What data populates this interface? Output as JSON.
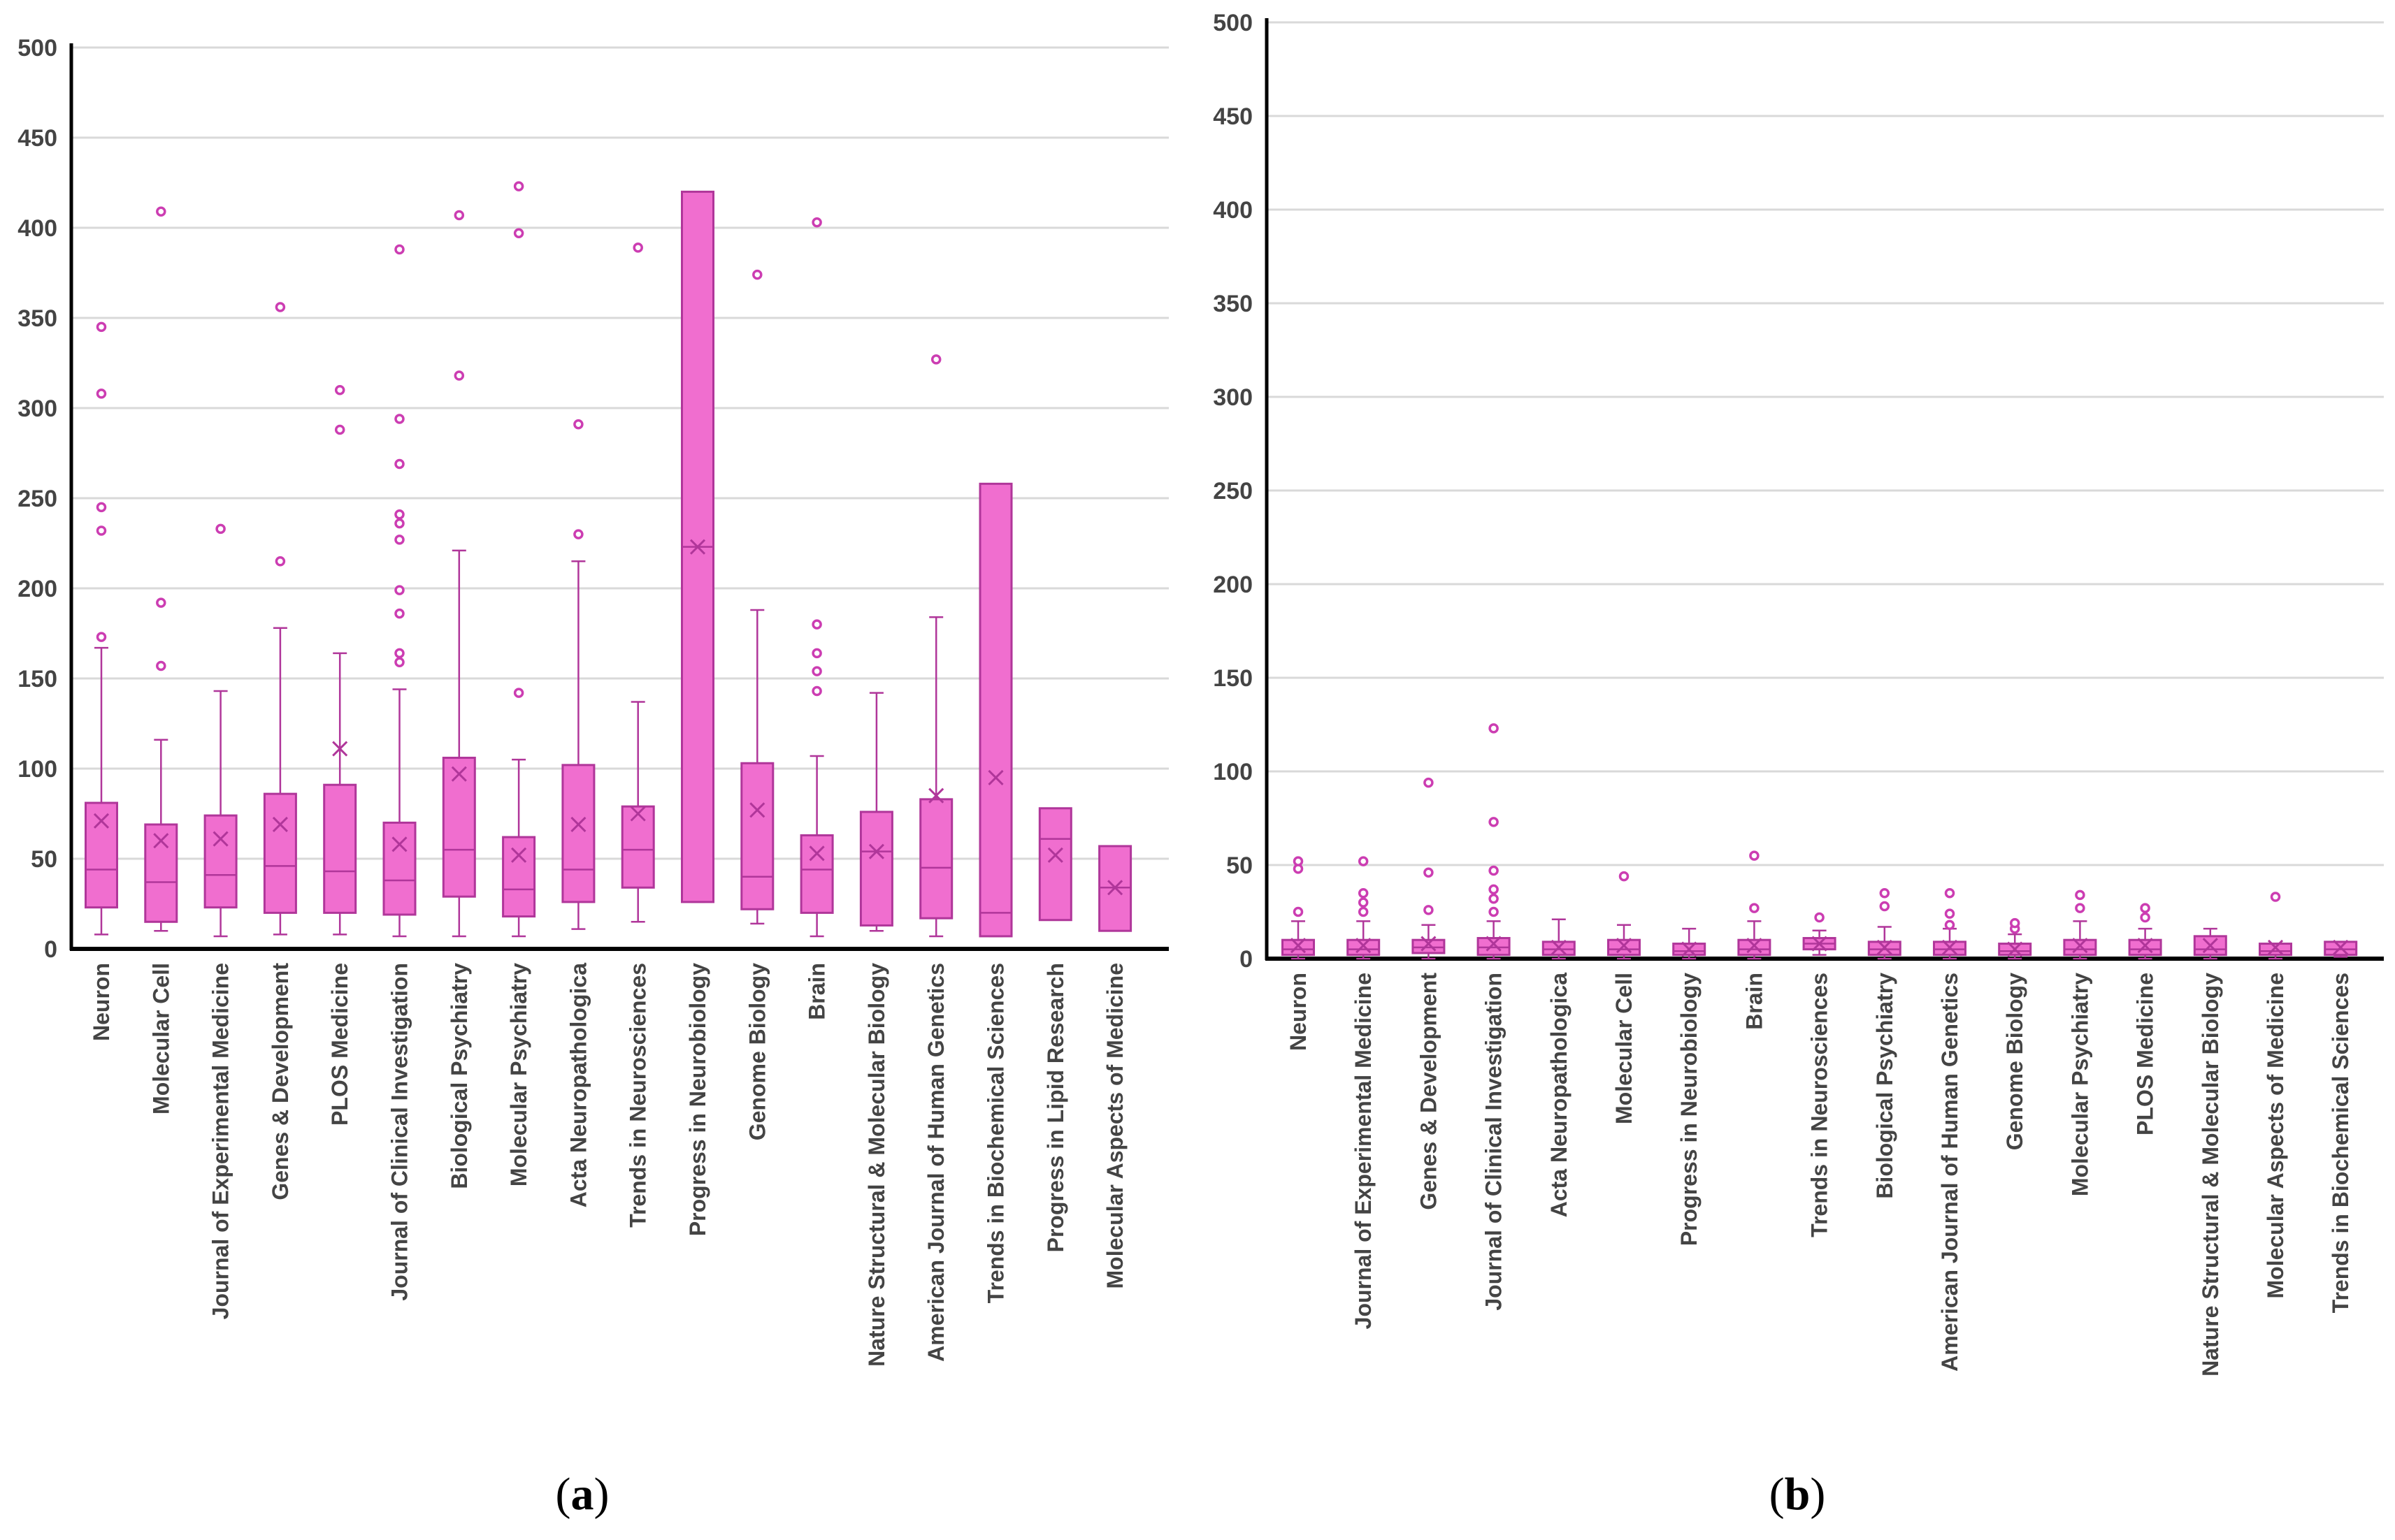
{
  "colors": {
    "box_fill": "#F06ECF",
    "box_stroke": "#B0369A",
    "outlier": "#CC3DB2",
    "grid": "#D9D9D9",
    "axis": "#000000"
  },
  "chart_data": [
    {
      "type": "box",
      "panel_label": "a",
      "ylim": [
        0,
        500
      ],
      "yticks": [
        "0",
        "50",
        "100",
        "150",
        "200",
        "250",
        "300",
        "350",
        "400",
        "450",
        "500"
      ],
      "grid": true,
      "categories": [
        {
          "name": "Neuron",
          "min": 8,
          "q1": 23,
          "median": 44,
          "q3": 81,
          "max": 167,
          "mean": 71,
          "outliers": [
            173,
            232,
            245,
            308,
            345
          ]
        },
        {
          "name": "Molecular Cell",
          "min": 10,
          "q1": 15,
          "median": 37,
          "q3": 69,
          "max": 116,
          "mean": 60,
          "outliers": [
            157,
            192,
            409
          ]
        },
        {
          "name": "Journal of Experimental Medicine",
          "min": 7,
          "q1": 23,
          "median": 41,
          "q3": 74,
          "max": 143,
          "mean": 61,
          "outliers": [
            233
          ]
        },
        {
          "name": "Genes & Development",
          "min": 8,
          "q1": 20,
          "median": 46,
          "q3": 86,
          "max": 178,
          "mean": 69,
          "outliers": [
            215,
            356
          ]
        },
        {
          "name": "PLOS Medicine",
          "min": 8,
          "q1": 20,
          "median": 43,
          "q3": 91,
          "max": 164,
          "mean": 111,
          "outliers": [
            288,
            310
          ]
        },
        {
          "name": "Journal of Clinical Investigation",
          "min": 7,
          "q1": 19,
          "median": 38,
          "q3": 70,
          "max": 144,
          "mean": 58,
          "outliers": [
            159,
            164,
            186,
            199,
            227,
            236,
            241,
            269,
            294,
            388
          ]
        },
        {
          "name": "Biological Psychiatry",
          "min": 7,
          "q1": 29,
          "median": 55,
          "q3": 106,
          "max": 221,
          "mean": 97,
          "outliers": [
            318,
            407
          ]
        },
        {
          "name": "Molecular Psychiatry",
          "min": 7,
          "q1": 18,
          "median": 33,
          "q3": 62,
          "max": 105,
          "mean": 52,
          "outliers": [
            142,
            397,
            423
          ]
        },
        {
          "name": "Acta Neuropathologica",
          "min": 11,
          "q1": 26,
          "median": 44,
          "q3": 102,
          "max": 215,
          "mean": 69,
          "outliers": [
            230,
            291
          ]
        },
        {
          "name": "Trends in Neurosciences",
          "min": 15,
          "q1": 34,
          "median": 55,
          "q3": 79,
          "max": 137,
          "mean": 75,
          "outliers": [
            389
          ]
        },
        {
          "name": "Progress in Neurobiology",
          "min": 26,
          "q1": 26,
          "median": 223,
          "q3": 420,
          "max": 420,
          "mean": 223,
          "outliers": []
        },
        {
          "name": "Genome Biology",
          "min": 14,
          "q1": 22,
          "median": 40,
          "q3": 103,
          "max": 188,
          "mean": 77,
          "outliers": [
            374
          ]
        },
        {
          "name": "Brain",
          "min": 7,
          "q1": 20,
          "median": 44,
          "q3": 63,
          "max": 107,
          "mean": 53,
          "outliers": [
            143,
            154,
            164,
            180,
            403
          ]
        },
        {
          "name": "Nature Structural & Molecular Biology",
          "min": 10,
          "q1": 13,
          "median": 54,
          "q3": 76,
          "max": 142,
          "mean": 54,
          "outliers": []
        },
        {
          "name": "American Journal of Human Genetics",
          "min": 7,
          "q1": 17,
          "median": 45,
          "q3": 83,
          "max": 184,
          "mean": 85,
          "outliers": [
            327
          ]
        },
        {
          "name": "Trends in Biochemical Sciences",
          "min": 7,
          "q1": 7,
          "median": 20,
          "q3": 258,
          "max": 258,
          "mean": 95,
          "outliers": []
        },
        {
          "name": "Progress in Lipid Research",
          "min": 16,
          "q1": 16,
          "median": 61,
          "q3": 78,
          "max": 78,
          "mean": 52,
          "outliers": []
        },
        {
          "name": "Molecular Aspects of Medicine",
          "min": 10,
          "q1": 10,
          "median": 34,
          "q3": 57,
          "max": 57,
          "mean": 34,
          "outliers": []
        }
      ]
    },
    {
      "type": "box",
      "panel_label": "b",
      "ylim": [
        0,
        500
      ],
      "yticks": [
        "0",
        "50",
        "100",
        "150",
        "200",
        "250",
        "300",
        "350",
        "400",
        "450",
        "500"
      ],
      "grid": true,
      "categories": [
        {
          "name": "Neuron",
          "min": 0,
          "q1": 2,
          "median": 5,
          "q3": 10,
          "max": 20,
          "mean": 7,
          "outliers": [
            25,
            48,
            52
          ]
        },
        {
          "name": "Journal of Experimental Medicine",
          "min": 0,
          "q1": 2,
          "median": 5,
          "q3": 10,
          "max": 20,
          "mean": 7,
          "outliers": [
            25,
            30,
            35,
            52
          ]
        },
        {
          "name": "Genes & Development",
          "min": 0,
          "q1": 3,
          "median": 6,
          "q3": 10,
          "max": 18,
          "mean": 8,
          "outliers": [
            26,
            46,
            94
          ]
        },
        {
          "name": "Journal of Clinical Investigation",
          "min": 0,
          "q1": 2,
          "median": 6,
          "q3": 11,
          "max": 20,
          "mean": 8,
          "outliers": [
            25,
            32,
            37,
            47,
            73,
            123
          ]
        },
        {
          "name": "Acta Neuropathologica",
          "min": 0,
          "q1": 2,
          "median": 5,
          "q3": 9,
          "max": 21,
          "mean": 6,
          "outliers": []
        },
        {
          "name": "Molecular Cell",
          "min": 0,
          "q1": 2,
          "median": 5,
          "q3": 10,
          "max": 18,
          "mean": 7,
          "outliers": [
            44
          ]
        },
        {
          "name": "Progress in Neurobiology",
          "min": 0,
          "q1": 2,
          "median": 4,
          "q3": 8,
          "max": 16,
          "mean": 5,
          "outliers": []
        },
        {
          "name": "Brain",
          "min": 0,
          "q1": 2,
          "median": 5,
          "q3": 10,
          "max": 20,
          "mean": 7,
          "outliers": [
            27,
            55
          ]
        },
        {
          "name": "Trends in Neurosciences",
          "min": 2,
          "q1": 5,
          "median": 8,
          "q3": 11,
          "max": 15,
          "mean": 8,
          "outliers": [
            22
          ]
        },
        {
          "name": "Biological Psychiatry",
          "min": 0,
          "q1": 2,
          "median": 5,
          "q3": 9,
          "max": 17,
          "mean": 6,
          "outliers": [
            28,
            35
          ]
        },
        {
          "name": "American Journal of Human Genetics",
          "min": 0,
          "q1": 2,
          "median": 5,
          "q3": 9,
          "max": 16,
          "mean": 6,
          "outliers": [
            18,
            24,
            35
          ]
        },
        {
          "name": "Genome Biology",
          "min": 0,
          "q1": 2,
          "median": 4,
          "q3": 8,
          "max": 13,
          "mean": 5,
          "outliers": [
            16,
            19
          ]
        },
        {
          "name": "Molecular Psychiatry",
          "min": 0,
          "q1": 2,
          "median": 5,
          "q3": 10,
          "max": 20,
          "mean": 7,
          "outliers": [
            27,
            34
          ]
        },
        {
          "name": "PLOS Medicine",
          "min": 0,
          "q1": 2,
          "median": 5,
          "q3": 10,
          "max": 16,
          "mean": 7,
          "outliers": [
            22,
            27
          ]
        },
        {
          "name": "Nature Structural & Molecular Biology",
          "min": 0,
          "q1": 2,
          "median": 5,
          "q3": 12,
          "max": 16,
          "mean": 7,
          "outliers": []
        },
        {
          "name": "Molecular Aspects of Medicine",
          "min": 0,
          "q1": 2,
          "median": 4,
          "q3": 8,
          "max": 8,
          "mean": 6,
          "outliers": [
            33
          ]
        },
        {
          "name": "Trends in Biochemical Sciences",
          "min": 1,
          "q1": 2,
          "median": 5,
          "q3": 9,
          "max": 9,
          "mean": 6,
          "outliers": []
        }
      ]
    }
  ]
}
